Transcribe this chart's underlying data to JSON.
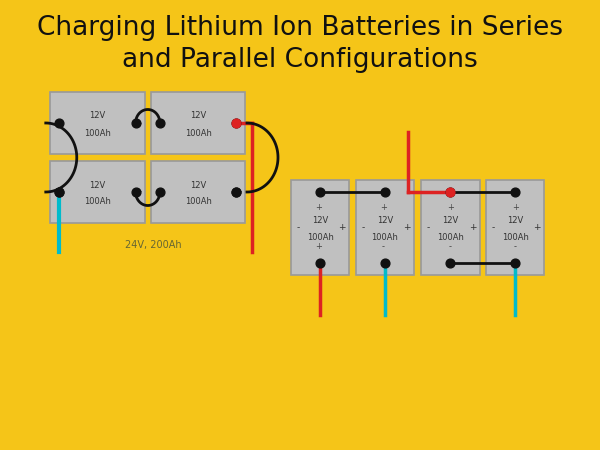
{
  "background_color": "#F5C518",
  "title_line1": "Charging Lithium Ion Batteries in Series",
  "title_line2": "and Parallel Configurations",
  "title_fontsize": 19,
  "title_color": "#111111",
  "battery_fill": "#C0C0C0",
  "battery_edge": "#999999",
  "wire_black": "#111111",
  "wire_red": "#DD2222",
  "wire_cyan": "#00BBCC",
  "dot_color": "#111111",
  "dot_red": "#DD2222",
  "annotation_color": "#666633",
  "annotation_text": "24V, 200Ah",
  "lw": 2.0,
  "dot_size": 40
}
